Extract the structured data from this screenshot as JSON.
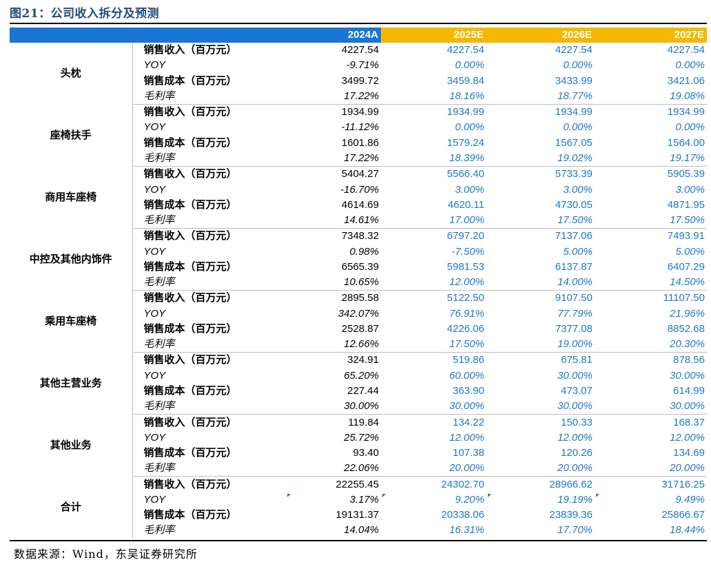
{
  "title": "图21：公司收入拆分及预测",
  "source": "数据来源：Wind，东吴证券研究所",
  "columns": [
    "2024A",
    "2025E",
    "2026E",
    "2027E"
  ],
  "colors": {
    "header_actual": "#1976d2",
    "header_estimate": "#f5b800",
    "estimate_text": "#1f77c8",
    "title": "#1f4e79"
  },
  "segments": [
    {
      "name": "头枕",
      "rows": [
        {
          "label": "销售收入（百万元）",
          "values": [
            "4227.54",
            "4227.54",
            "4227.54",
            "4227.54"
          ]
        },
        {
          "label": "YOY",
          "values": [
            "-9.71%",
            "0.00%",
            "0.00%",
            "0.00%"
          ]
        },
        {
          "label": "销售成本（百万元）",
          "values": [
            "3499.72",
            "3459.84",
            "3433.99",
            "3421.06"
          ]
        },
        {
          "label": "毛利率",
          "values": [
            "17.22%",
            "18.16%",
            "18.77%",
            "19.08%"
          ]
        }
      ]
    },
    {
      "name": "座椅扶手",
      "rows": [
        {
          "label": "销售收入（百万元）",
          "values": [
            "1934.99",
            "1934.99",
            "1934.99",
            "1934.99"
          ]
        },
        {
          "label": "YOY",
          "values": [
            "-11.12%",
            "0.00%",
            "0.00%",
            "0.00%"
          ]
        },
        {
          "label": "销售成本（百万元）",
          "values": [
            "1601.86",
            "1579.24",
            "1567.05",
            "1564.00"
          ]
        },
        {
          "label": "毛利率",
          "values": [
            "17.22%",
            "18.39%",
            "19.02%",
            "19.17%"
          ]
        }
      ]
    },
    {
      "name": "商用车座椅",
      "rows": [
        {
          "label": "销售收入（百万元）",
          "values": [
            "5404.27",
            "5566.40",
            "5733.39",
            "5905.39"
          ]
        },
        {
          "label": "YOY",
          "values": [
            "-16.70%",
            "3.00%",
            "3.00%",
            "3.00%"
          ]
        },
        {
          "label": "销售成本（百万元）",
          "values": [
            "4614.69",
            "4620.11",
            "4730.05",
            "4871.95"
          ]
        },
        {
          "label": "毛利率",
          "values": [
            "14.61%",
            "17.00%",
            "17.50%",
            "17.50%"
          ]
        }
      ]
    },
    {
      "name": "中控及其他内饰件",
      "rows": [
        {
          "label": "销售收入（百万元）",
          "values": [
            "7348.32",
            "6797.20",
            "7137.06",
            "7493.91"
          ]
        },
        {
          "label": "YOY",
          "values": [
            "0.98%",
            "-7.50%",
            "5.00%",
            "5.00%"
          ]
        },
        {
          "label": "销售成本（百万元）",
          "values": [
            "6565.39",
            "5981.53",
            "6137.87",
            "6407.29"
          ]
        },
        {
          "label": "毛利率",
          "values": [
            "10.65%",
            "12.00%",
            "14.00%",
            "14.50%"
          ]
        }
      ]
    },
    {
      "name": "乘用车座椅",
      "rows": [
        {
          "label": "销售收入（百万元）",
          "values": [
            "2895.58",
            "5122.50",
            "9107.50",
            "11107.50"
          ]
        },
        {
          "label": "YOY",
          "values": [
            "342.07%",
            "76.91%",
            "77.79%",
            "21.96%"
          ]
        },
        {
          "label": "销售成本（百万元）",
          "values": [
            "2528.87",
            "4226.06",
            "7377.08",
            "8852.68"
          ]
        },
        {
          "label": "毛利率",
          "values": [
            "12.66%",
            "17.50%",
            "19.00%",
            "20.30%"
          ]
        }
      ]
    },
    {
      "name": "其他主营业务",
      "rows": [
        {
          "label": "销售收入（百万元）",
          "values": [
            "324.91",
            "519.86",
            "675.81",
            "878.56"
          ]
        },
        {
          "label": "YOY",
          "values": [
            "65.20%",
            "60.00%",
            "30.00%",
            "30.00%"
          ]
        },
        {
          "label": "销售成本（百万元）",
          "values": [
            "227.44",
            "363.90",
            "473.07",
            "614.99"
          ]
        },
        {
          "label": "毛利率",
          "values": [
            "30.00%",
            "30.00%",
            "30.00%",
            "30.00%"
          ]
        }
      ]
    },
    {
      "name": "其他业务",
      "rows": [
        {
          "label": "销售收入（百万元）",
          "values": [
            "119.84",
            "134.22",
            "150.33",
            "168.37"
          ]
        },
        {
          "label": "YOY",
          "values": [
            "25.72%",
            "12.00%",
            "12.00%",
            "12.00%"
          ]
        },
        {
          "label": "销售成本（百万元）",
          "values": [
            "93.40",
            "107.38",
            "120.26",
            "134.69"
          ]
        },
        {
          "label": "毛利率",
          "values": [
            "22.06%",
            "20.00%",
            "20.00%",
            "20.00%"
          ]
        }
      ]
    },
    {
      "name": "合计",
      "rows": [
        {
          "label": "销售收入（百万元）",
          "values": [
            "22255.45",
            "24302.70",
            "28966.62",
            "31716.25"
          ]
        },
        {
          "label": "YOY",
          "values": [
            "3.17%",
            "9.20%",
            "19.19%",
            "9.49%"
          ]
        },
        {
          "label": "销售成本（百万元）",
          "values": [
            "19131.37",
            "20338.06",
            "23839.36",
            "25866.67"
          ]
        },
        {
          "label": "毛利率",
          "values": [
            "14.04%",
            "16.31%",
            "17.70%",
            "18.44%"
          ]
        }
      ]
    }
  ]
}
